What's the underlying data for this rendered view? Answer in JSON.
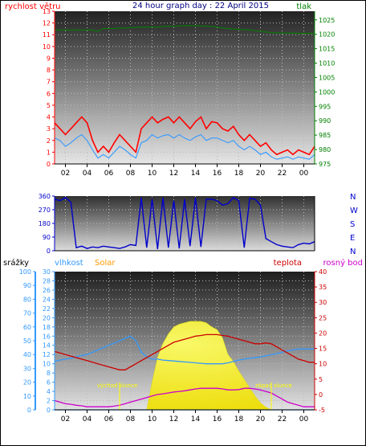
{
  "colors": {
    "wind": "#ff0000",
    "pressure": "#008000",
    "direction": "#0000cc",
    "rain": "#3399ff",
    "humidity": "#3399ff",
    "solar": "#ffff00",
    "solar_label": "#ff9900",
    "temperature": "#cc0000",
    "dewpoint": "#cc00cc",
    "sun_label": "#ffff00"
  },
  "chart_data": [
    {
      "type": "line",
      "title": "24 hour graph day : 22 April 2015",
      "left_axis_label": "rychlost větru",
      "right_axis_label": "tlak",
      "xticks": [
        "02",
        "04",
        "06",
        "08",
        "10",
        "12",
        "14",
        "16",
        "18",
        "20",
        "22",
        "00"
      ],
      "yticks_left": [
        "0",
        "1",
        "2",
        "3",
        "4",
        "5",
        "6",
        "7",
        "8",
        "9",
        "10",
        "11",
        "12",
        "13"
      ],
      "yticks_right": [
        "975",
        "980",
        "985",
        "990",
        "995",
        "1000",
        "1005",
        "1010",
        "1015",
        "1020",
        "1025"
      ],
      "ylim_left": [
        0,
        13
      ],
      "ylim_right": [
        975,
        1028
      ],
      "x_hours": [
        0,
        0.5,
        1,
        1.5,
        2,
        2.5,
        3,
        3.5,
        4,
        4.5,
        5,
        5.5,
        6,
        6.5,
        7,
        7.5,
        8,
        8.5,
        9,
        9.5,
        10,
        10.5,
        11,
        11.5,
        12,
        12.5,
        13,
        13.5,
        14,
        14.5,
        15,
        15.5,
        16,
        16.5,
        17,
        17.5,
        18,
        18.5,
        19,
        19.5,
        20,
        20.5,
        21,
        21.5,
        22,
        22.5,
        23,
        23.5,
        24
      ],
      "series": [
        {
          "name": "gust",
          "axis": "left",
          "values": [
            3.5,
            3,
            2.5,
            3,
            3.5,
            4,
            3.5,
            2,
            1,
            1.5,
            1,
            1.8,
            2.5,
            2,
            1.5,
            1,
            3,
            3.5,
            4,
            3.5,
            3.8,
            4,
            3.5,
            4,
            3.5,
            3,
            3.6,
            4,
            3,
            3.6,
            3.5,
            3,
            2.8,
            3.2,
            2.5,
            2,
            2.5,
            2,
            1.5,
            1.8,
            1.2,
            0.8,
            1,
            1.2,
            0.8,
            1.2,
            1,
            0.8,
            1.5
          ]
        },
        {
          "name": "average",
          "axis": "left",
          "values": [
            2.2,
            2,
            1.5,
            1.8,
            2.2,
            2.5,
            2,
            1.2,
            0.5,
            0.8,
            0.5,
            1,
            1.5,
            1.2,
            0.8,
            0.5,
            1.8,
            2,
            2.5,
            2.2,
            2.4,
            2.5,
            2.2,
            2.5,
            2.2,
            2,
            2.3,
            2.5,
            2,
            2.2,
            2.2,
            2,
            1.8,
            2,
            1.5,
            1.2,
            1.5,
            1.2,
            0.8,
            1,
            0.6,
            0.4,
            0.5,
            0.6,
            0.4,
            0.6,
            0.5,
            0.4,
            0.8
          ]
        },
        {
          "name": "pressure",
          "axis": "right",
          "values": [
            1021.5,
            1021.5,
            1021.5,
            1021.5,
            1021.5,
            1021.5,
            1021.5,
            1021.5,
            1021,
            1022,
            1022,
            1022,
            1022.2,
            1022.2,
            1022.3,
            1022.4,
            1022.5,
            1022.5,
            1022.5,
            1022.5,
            1022.7,
            1022.8,
            1022.8,
            1022.9,
            1023,
            1023,
            1023,
            1022.9,
            1022.8,
            1022.7,
            1022.5,
            1022.2,
            1022,
            1021.8,
            1021.7,
            1021.6,
            1021.5,
            1021.3,
            1021,
            1020.8,
            1020.6,
            1020.5,
            1020.5,
            1020.4,
            1020.4,
            1020.3,
            1020.3,
            1020.3,
            1020.3
          ]
        }
      ]
    },
    {
      "type": "scatter",
      "yticks": [
        "0",
        "90",
        "180",
        "270",
        "360"
      ],
      "ylim": [
        0,
        360
      ],
      "compass": [
        "N",
        "W",
        "S",
        "E",
        "N"
      ],
      "xticks": [
        "02",
        "04",
        "06",
        "08",
        "10",
        "12",
        "14",
        "16",
        "18",
        "20",
        "22",
        "00"
      ],
      "x_hours": [
        0,
        0.5,
        1,
        1.5,
        2,
        2.5,
        3,
        3.5,
        4,
        4.5,
        5,
        5.5,
        6,
        6.5,
        7,
        7.5,
        8,
        8.5,
        9,
        9.5,
        10,
        10.5,
        11,
        11.5,
        12,
        12.5,
        13,
        13.5,
        14,
        14.5,
        15,
        15.5,
        16,
        16.5,
        17,
        17.5,
        18,
        18.5,
        19,
        19.5,
        20,
        20.5,
        21,
        21.5,
        22,
        22.5,
        23,
        23.5,
        24
      ],
      "series": [
        {
          "name": "direction",
          "values": [
            340,
            330,
            350,
            320,
            20,
            30,
            15,
            25,
            20,
            30,
            25,
            20,
            15,
            25,
            40,
            35,
            350,
            20,
            340,
            10,
            350,
            20,
            330,
            15,
            340,
            30,
            350,
            25,
            340,
            340,
            330,
            300,
            310,
            350,
            330,
            20,
            345,
            340,
            300,
            80,
            60,
            40,
            30,
            25,
            20,
            40,
            50,
            45,
            60
          ]
        }
      ]
    },
    {
      "type": "line",
      "labels": {
        "rain": "srážky",
        "humidity": "vlhkost",
        "solar": "Solar",
        "temperature": "teplota",
        "dewpoint": "rosný bod",
        "sunrise": "východ slunce",
        "sunset": "západ slunce"
      },
      "xticks": [
        "02",
        "04",
        "06",
        "08",
        "10",
        "12",
        "14",
        "16",
        "18",
        "20",
        "22",
        "00"
      ],
      "yticks_rain": [
        "0",
        "10",
        "20",
        "30",
        "40",
        "50",
        "60",
        "70",
        "80",
        "90",
        "100"
      ],
      "yticks_humidity": [
        "0",
        "2",
        "4",
        "6",
        "8",
        "10",
        "12",
        "14",
        "16",
        "18",
        "20",
        "22",
        "24",
        "26",
        "28",
        "30"
      ],
      "yticks_temp": [
        "-5",
        "0",
        "5",
        "10",
        "15",
        "20",
        "25",
        "30",
        "35",
        "40"
      ],
      "ylim_rain": [
        0,
        100
      ],
      "ylim_humidity": [
        0,
        30
      ],
      "ylim_temp": [
        -5,
        40
      ],
      "sunrise_hour": 6,
      "sunset_hour": 20,
      "x_hours": [
        0,
        0.5,
        1,
        1.5,
        2,
        2.5,
        3,
        3.5,
        4,
        4.5,
        5,
        5.5,
        6,
        6.5,
        7,
        7.5,
        8,
        8.5,
        9,
        9.5,
        10,
        10.5,
        11,
        11.5,
        12,
        12.5,
        13,
        13.5,
        14,
        14.5,
        15,
        15.5,
        16,
        16.5,
        17,
        17.5,
        18,
        18.5,
        19,
        19.5,
        20,
        20.5,
        21,
        21.5,
        22,
        22.5,
        23,
        23.5,
        24
      ],
      "series": [
        {
          "name": "humidity",
          "axis": "humidity",
          "values": [
            10.5,
            10.8,
            11,
            11.2,
            11.5,
            11.8,
            12,
            12.5,
            13,
            13.5,
            14,
            14.5,
            15,
            15.5,
            16,
            15,
            12.5,
            11.5,
            11,
            11,
            10.8,
            10.7,
            10.6,
            10.5,
            10.4,
            10.3,
            10.2,
            10.1,
            10,
            10,
            10,
            10,
            10.2,
            10.5,
            10.8,
            11,
            11.2,
            11.3,
            11.5,
            11.7,
            12,
            12.2,
            12.5,
            12.8,
            13,
            13.2,
            13.2,
            13.2,
            13.2
          ]
        },
        {
          "name": "temperature",
          "axis": "temp",
          "values": [
            14,
            13.5,
            13,
            12.5,
            12,
            11.5,
            11,
            10.5,
            10,
            9.5,
            9,
            8.5,
            8,
            8,
            9,
            10,
            11,
            12,
            13,
            14,
            15,
            16,
            17,
            17.5,
            18,
            18.5,
            19,
            19.2,
            19.5,
            19.5,
            19.5,
            19.2,
            19,
            18.5,
            18,
            17.5,
            17,
            16.5,
            16.5,
            16.8,
            16.5,
            15.5,
            14.5,
            13.5,
            12.5,
            11.5,
            11,
            10.5,
            10.5
          ]
        },
        {
          "name": "solar",
          "axis": "rain",
          "values": [
            0,
            0,
            0,
            0,
            0,
            0,
            0,
            0,
            0,
            0,
            0,
            0,
            0,
            0,
            0,
            0,
            0,
            0,
            20,
            38,
            48,
            55,
            60,
            62,
            63,
            64,
            64,
            64,
            63,
            60,
            58,
            52,
            40,
            35,
            28,
            22,
            16,
            10,
            5,
            2,
            0,
            0,
            0,
            0,
            0,
            0,
            0,
            0,
            0
          ]
        },
        {
          "name": "dewpoint",
          "axis": "temp",
          "values": [
            -2,
            -2.5,
            -3,
            -3.2,
            -3.5,
            -3.7,
            -4,
            -4,
            -4,
            -4,
            -4,
            -3.8,
            -3.5,
            -3,
            -2.5,
            -2,
            -1.5,
            -1,
            -0.5,
            0,
            0.2,
            0.5,
            0.8,
            1,
            1.2,
            1.5,
            1.8,
            2,
            2,
            2,
            2,
            1.8,
            1.5,
            1.5,
            1.6,
            2,
            2,
            1.8,
            1.5,
            1,
            0.5,
            -0.5,
            -1.5,
            -2.5,
            -3,
            -3.5,
            -4,
            -4,
            -4
          ]
        },
        {
          "name": "rain",
          "axis": "rain",
          "values": [
            0,
            0,
            0,
            0,
            0,
            0,
            0,
            0,
            0,
            0,
            0,
            0,
            0,
            0,
            0,
            0,
            0,
            0,
            0,
            0,
            0,
            0,
            0,
            0,
            0,
            0,
            0,
            0,
            0,
            0,
            0,
            0,
            0,
            0,
            0,
            0,
            0,
            0,
            0,
            0,
            0,
            0,
            0,
            0,
            0,
            0,
            0,
            0,
            0
          ]
        }
      ]
    }
  ]
}
